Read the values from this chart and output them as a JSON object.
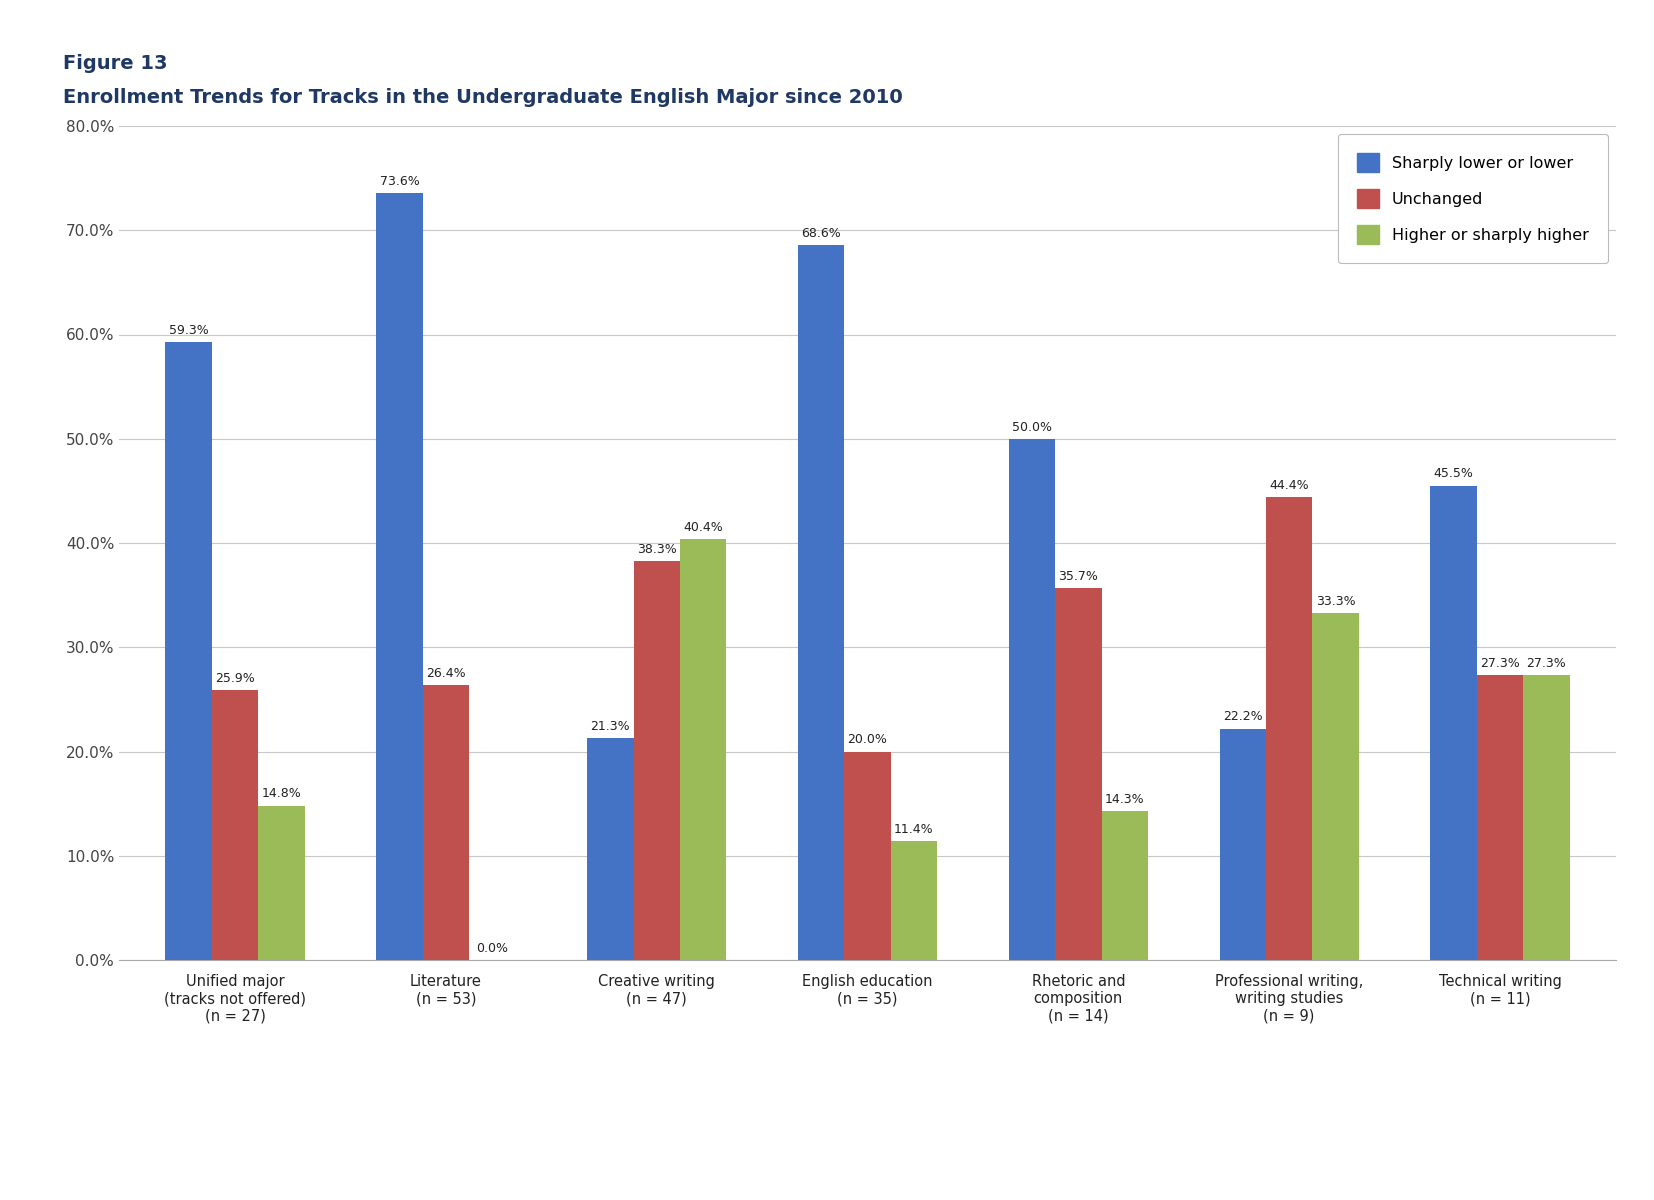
{
  "title_line1": "Figure 13",
  "title_line2": "Enrollment Trends for Tracks in the Undergraduate English Major since 2010",
  "title_color": "#1F3864",
  "categories": [
    "Unified major\n(tracks not offered)\n(n = 27)",
    "Literature\n(n = 53)",
    "Creative writing\n(n = 47)",
    "English education\n(n = 35)",
    "Rhetoric and\ncomposition\n(n = 14)",
    "Professional writing,\nwriting studies\n(n = 9)",
    "Technical writing\n(n = 11)"
  ],
  "series": {
    "Sharply lower or lower": [
      59.3,
      73.6,
      21.3,
      68.6,
      50.0,
      22.2,
      45.5
    ],
    "Unchanged": [
      25.9,
      26.4,
      38.3,
      20.0,
      35.7,
      44.4,
      27.3
    ],
    "Higher or sharply higher": [
      14.8,
      0.0,
      40.4,
      11.4,
      14.3,
      33.3,
      27.3
    ]
  },
  "colors": {
    "Sharply lower or lower": "#4472C4",
    "Unchanged": "#C0504D",
    "Higher or sharply higher": "#9BBB59"
  },
  "ylim": [
    0,
    80
  ],
  "yticks": [
    0,
    10,
    20,
    30,
    40,
    50,
    60,
    70,
    80
  ],
  "ytick_labels": [
    "0.0%",
    "10.0%",
    "20.0%",
    "30.0%",
    "40.0%",
    "50.0%",
    "60.0%",
    "70.0%",
    "80.0%"
  ],
  "background_color": "#FFFFFF",
  "plot_background": "#FFFFFF",
  "grid_color": "#C8C8C8",
  "bar_width": 0.22,
  "legend_labels": [
    "Sharply lower or lower",
    "Unchanged",
    "Higher or sharply higher"
  ],
  "top_bar_color": "#1F3864",
  "label_fontsize": 9.0,
  "axis_tick_fontsize": 11.0,
  "xtick_fontsize": 10.5
}
